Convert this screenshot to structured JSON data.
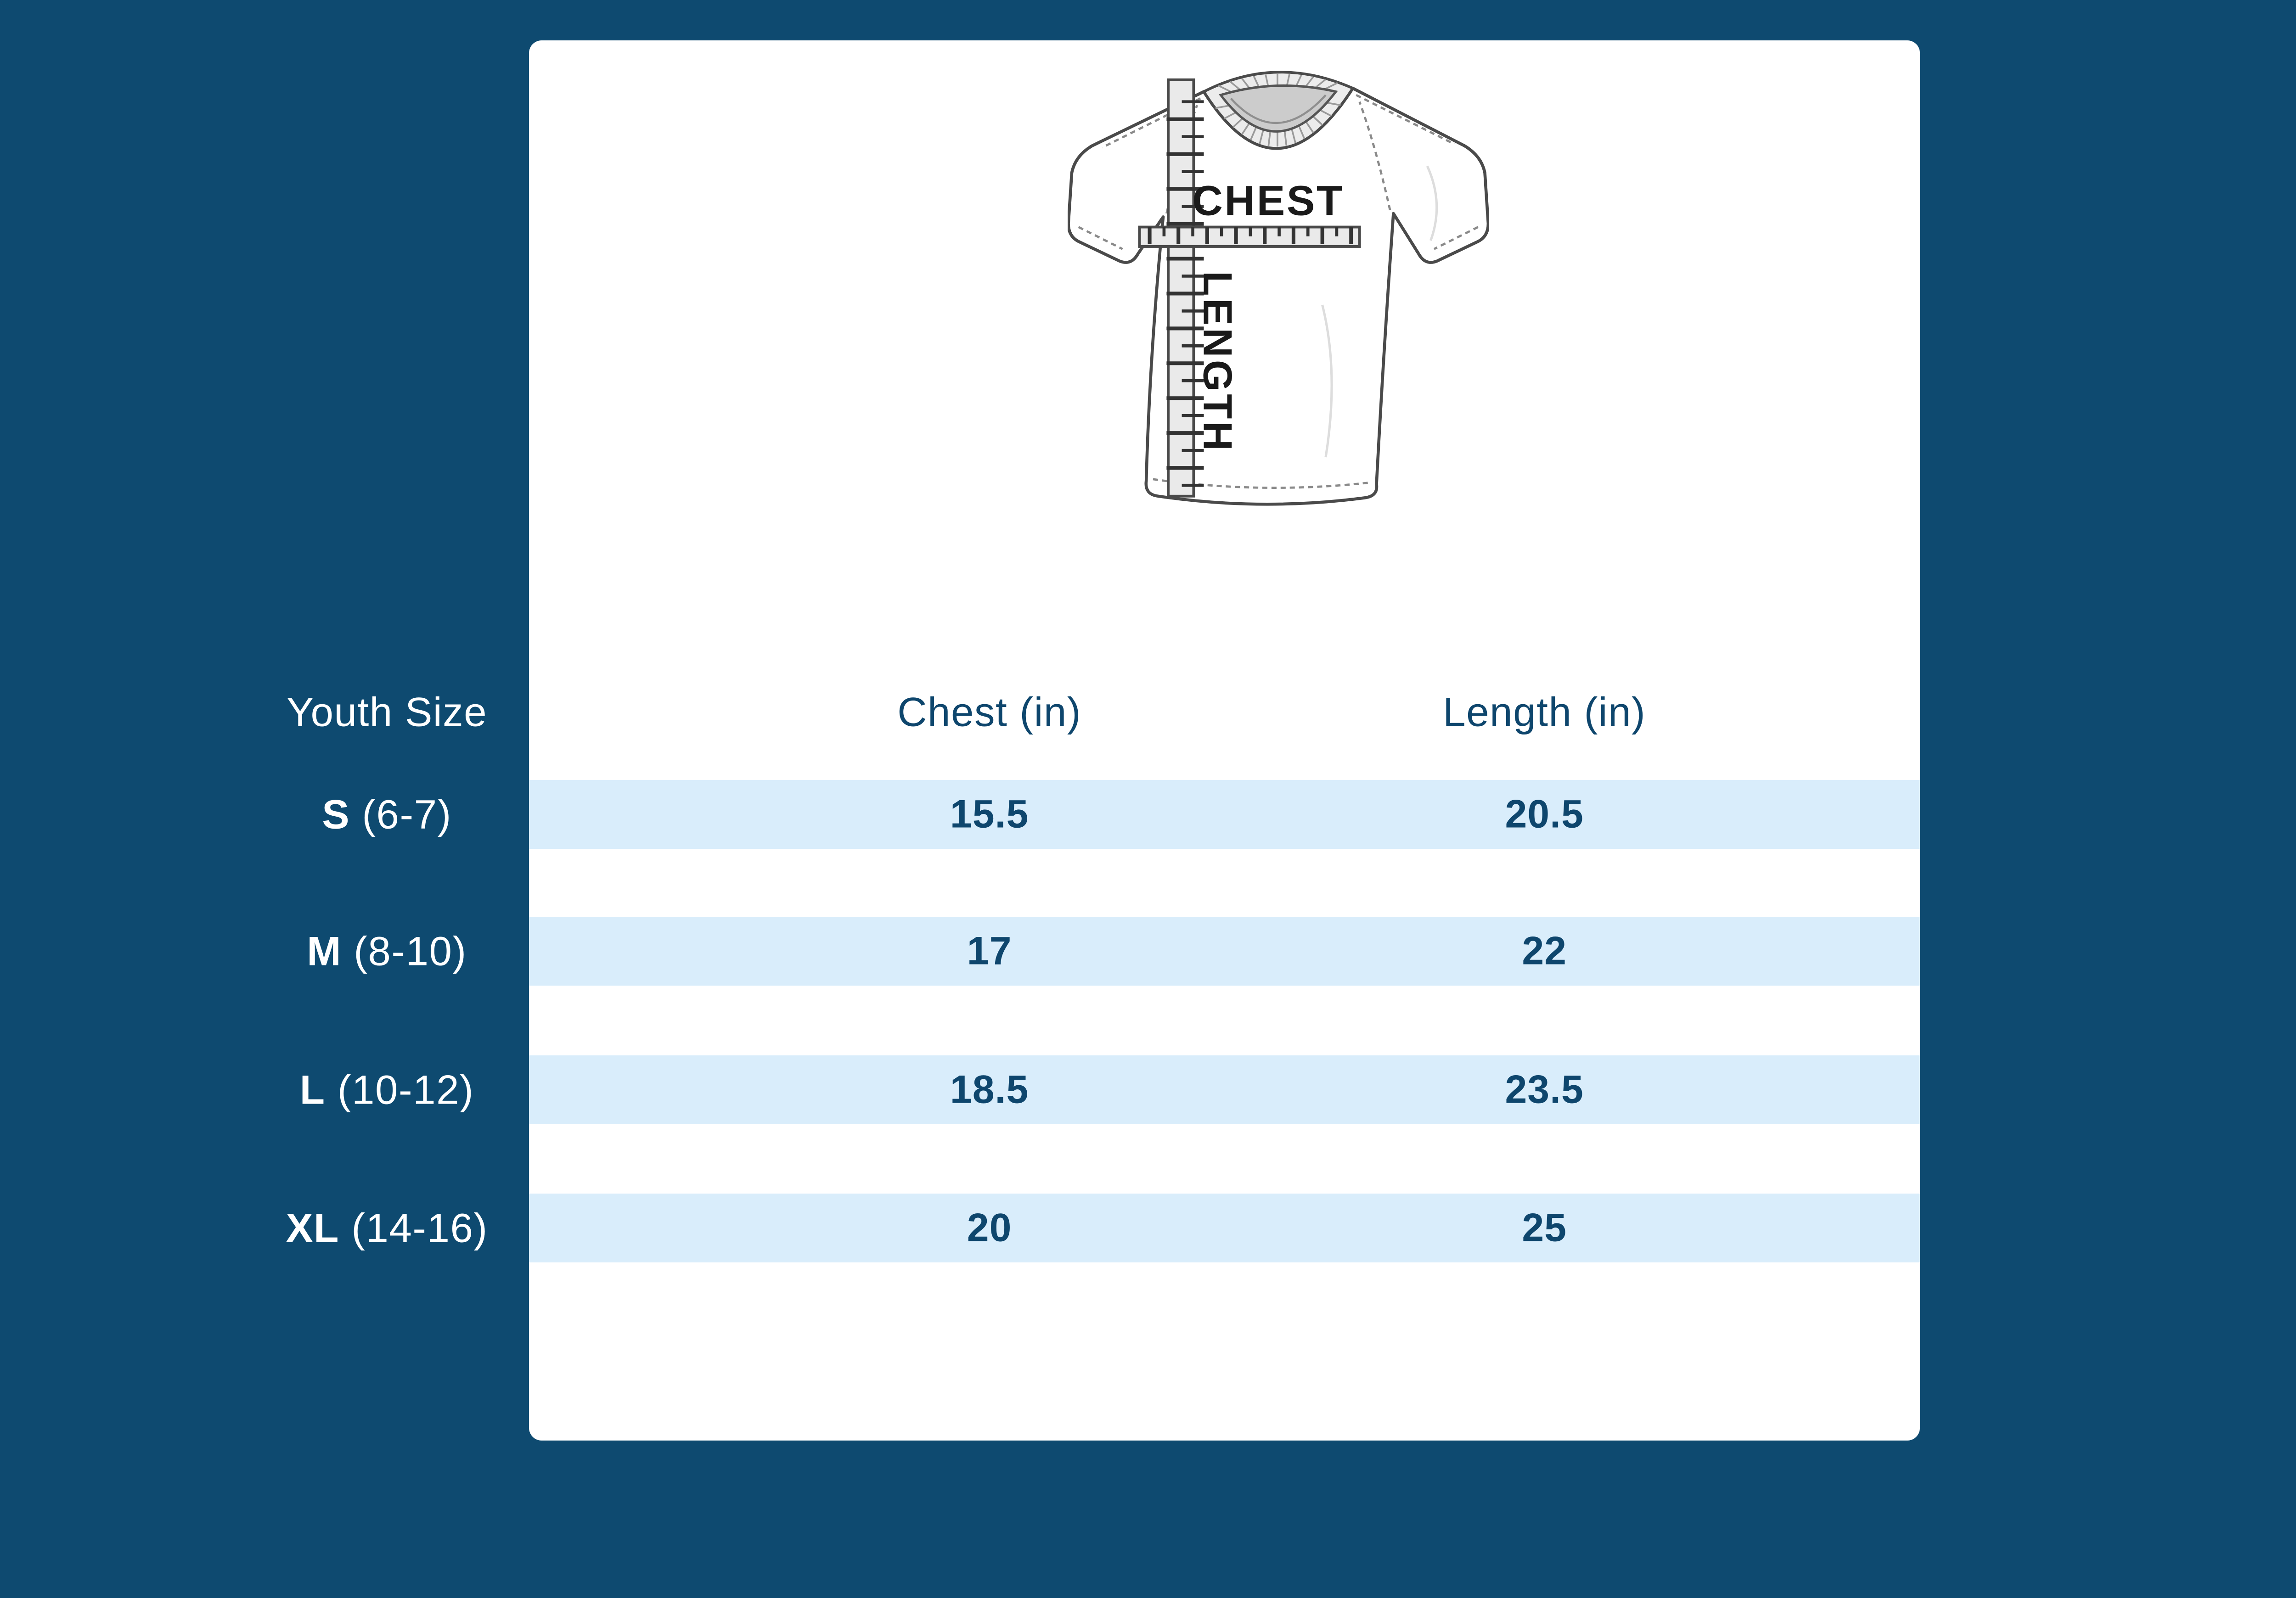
{
  "colors": {
    "background": "#0e4a70",
    "card": "#ffffff",
    "row_band": "#d9edfb",
    "header_text": "#0e466d",
    "value_text": "#0e466d",
    "label_text": "#ffffff"
  },
  "size_guide": {
    "illustration": {
      "chest_label": "CHEST",
      "length_label": "LENGTH"
    },
    "table": {
      "columns": {
        "size": "Youth Size",
        "chest": "Chest (in)",
        "length": "Length (in)"
      },
      "rows": [
        {
          "size": "S",
          "range": "(6-7)",
          "chest": "15.5",
          "length": "20.5"
        },
        {
          "size": "M",
          "range": "(8-10)",
          "chest": "17",
          "length": "22"
        },
        {
          "size": "L",
          "range": "(10-12)",
          "chest": "18.5",
          "length": "23.5"
        },
        {
          "size": "XL",
          "range": "(14-16)",
          "chest": "20",
          "length": "25"
        }
      ]
    }
  }
}
